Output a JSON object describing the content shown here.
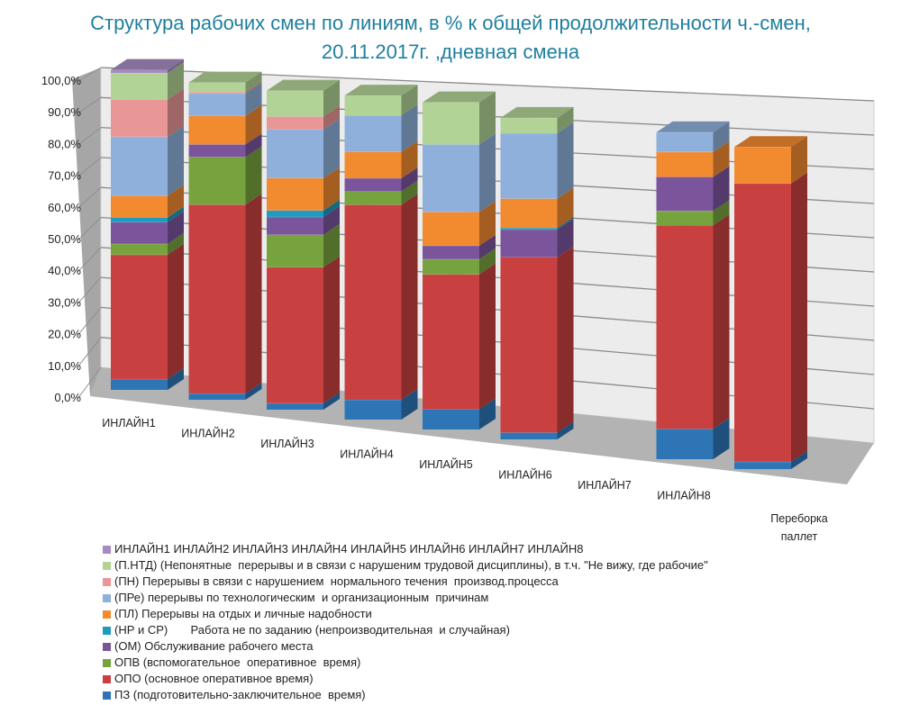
{
  "chart_data": {
    "type": "bar",
    "stacked": true,
    "three_d": true,
    "title": "Структура рабочих смен по линиям, в % к общей продолжительности ч.-смен, 20.11.2017г. ,дневная смена",
    "title_lines": [
      "Структура рабочих смен по линиям, в % к общей продолжительности ч.-смен,",
      "20.11.2017г. ,дневная смена"
    ],
    "xlabel": "",
    "ylabel": "",
    "ylim": [
      0,
      100
    ],
    "yticks": [
      "0,0%",
      "10,0%",
      "20,0%",
      "30,0%",
      "40,0%",
      "50,0%",
      "60,0%",
      "70,0%",
      "80,0%",
      "90,0%",
      "100,0%"
    ],
    "grid": true,
    "legend_position": "bottom",
    "categories": [
      "ИНЛАЙН1",
      "ИНЛАЙН2",
      "ИНЛАЙН3",
      "ИНЛАЙН4",
      "ИНЛАЙН5",
      "ИНЛАЙН6",
      "ИНЛАЙН7",
      "ИНЛАЙН8",
      "Переборка паллет"
    ],
    "series": [
      {
        "name": "ПЗ (подготовительно-заключительное  время)",
        "color": "#2e75b6",
        "values": [
          3.5,
          2,
          2,
          6,
          6,
          2,
          0,
          8.5,
          2
        ]
      },
      {
        "name": "ОПО (основное оперативное время)",
        "color": "#c94040",
        "values": [
          40,
          59.5,
          42,
          59,
          40,
          51,
          0,
          57,
          76.5
        ]
      },
      {
        "name": "ОПВ (вспомогательное  оперативное  время)",
        "color": "#77a33e",
        "values": [
          3.5,
          15,
          10,
          4,
          4.5,
          0,
          0,
          4,
          0
        ]
      },
      {
        "name": "(ОМ) Обслуживание рабочего места",
        "color": "#7a559c",
        "values": [
          7,
          4,
          5.5,
          4,
          4,
          8,
          0,
          9.5,
          0
        ]
      },
      {
        "name": "(НР и СР)       Работа не по заданию (непроизводительная  и случайная)",
        "color": "#1e9bbf",
        "values": [
          1.5,
          0,
          2,
          0,
          0,
          0.5,
          0,
          0,
          0
        ]
      },
      {
        "name": "(ПЛ) Перерывы на отдых и личные надобности",
        "color": "#f28a30",
        "values": [
          7,
          9,
          10,
          8,
          10,
          8.5,
          0,
          7,
          10
        ]
      },
      {
        "name": "(ПРе) перерывы по технологическим  и организационным  причинам",
        "color": "#8eb0db",
        "values": [
          19,
          7,
          15,
          11,
          20,
          19,
          0,
          5.5,
          0
        ]
      },
      {
        "name": "(ПН) Перерывы в связи с нарушением  нормального течения  производ.процесса",
        "color": "#e99696",
        "values": [
          12,
          0.5,
          4,
          0,
          0,
          0,
          0,
          0,
          0
        ]
      },
      {
        "name": "(П.НТД) (Непонятные  перерывы и в связи с нарушеним трудовой дисциплины), в т.ч. \"Не вижу, где рабочие\"",
        "color": "#b1d395",
        "values": [
          8.5,
          3,
          8,
          6,
          12.5,
          4.5,
          0,
          0,
          0
        ]
      },
      {
        "name": "ИНЛАЙН1 ИНЛАЙН2 ИНЛАЙН3 ИНЛАЙН4 ИНЛАЙН5 ИНЛАЙН6 ИНЛАЙН7 ИНЛАЙН8",
        "color": "#a68bc2",
        "values": [
          1,
          0,
          0,
          0,
          0,
          0,
          0,
          0,
          0
        ]
      }
    ]
  }
}
